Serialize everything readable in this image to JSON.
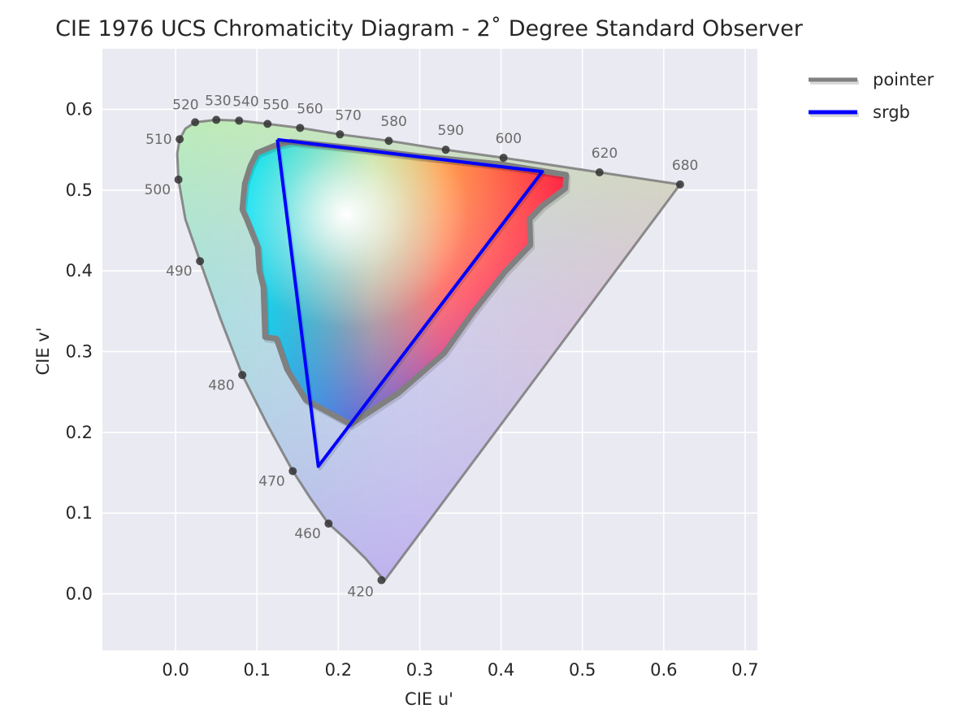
{
  "chart_data": {
    "type": "scatter",
    "title": "CIE 1976 UCS Chromaticity Diagram - 2˚ Degree Standard Observer",
    "xlabel": "CIE u'",
    "ylabel": "CIE v'",
    "xlim": [
      -0.09,
      0.715
    ],
    "ylim": [
      -0.07,
      0.675
    ],
    "xticks": [
      0.0,
      0.1,
      0.2,
      0.3,
      0.4,
      0.5,
      0.6,
      0.7
    ],
    "yticks": [
      0.0,
      0.1,
      0.2,
      0.3,
      0.4,
      0.5,
      0.6
    ],
    "xtick_labels": [
      "0.0",
      "0.1",
      "0.2",
      "0.3",
      "0.4",
      "0.5",
      "0.6",
      "0.7"
    ],
    "ytick_labels": [
      "0.0",
      "0.1",
      "0.2",
      "0.3",
      "0.4",
      "0.5",
      "0.6"
    ],
    "grid": true,
    "legend_position": "outside-top-right",
    "spectral_locus": [
      {
        "u": 0.2568,
        "v": 0.0165
      },
      {
        "u": 0.2333,
        "v": 0.044
      },
      {
        "u": 0.21,
        "v": 0.067
      },
      {
        "u": 0.188,
        "v": 0.087
      },
      {
        "u": 0.166,
        "v": 0.118
      },
      {
        "u": 0.144,
        "v": 0.152
      },
      {
        "u": 0.113,
        "v": 0.209
      },
      {
        "u": 0.082,
        "v": 0.271
      },
      {
        "u": 0.055,
        "v": 0.341
      },
      {
        "u": 0.03,
        "v": 0.412
      },
      {
        "u": 0.012,
        "v": 0.464
      },
      {
        "u": 0.0035,
        "v": 0.513
      },
      {
        "u": 0.002,
        "v": 0.545
      },
      {
        "u": 0.005,
        "v": 0.563
      },
      {
        "u": 0.012,
        "v": 0.576
      },
      {
        "u": 0.024,
        "v": 0.584
      },
      {
        "u": 0.05,
        "v": 0.587
      },
      {
        "u": 0.078,
        "v": 0.586
      },
      {
        "u": 0.113,
        "v": 0.582
      },
      {
        "u": 0.153,
        "v": 0.577
      },
      {
        "u": 0.202,
        "v": 0.569
      },
      {
        "u": 0.262,
        "v": 0.561
      },
      {
        "u": 0.332,
        "v": 0.55
      },
      {
        "u": 0.403,
        "v": 0.54
      },
      {
        "u": 0.521,
        "v": 0.522
      },
      {
        "u": 0.62,
        "v": 0.507
      }
    ],
    "wavelength_markers": [
      {
        "nm": "420",
        "u": 0.253,
        "v": 0.017
      },
      {
        "nm": "460",
        "u": 0.188,
        "v": 0.087
      },
      {
        "nm": "470",
        "u": 0.144,
        "v": 0.152
      },
      {
        "nm": "480",
        "u": 0.082,
        "v": 0.271
      },
      {
        "nm": "490",
        "u": 0.03,
        "v": 0.412
      },
      {
        "nm": "500",
        "u": 0.0035,
        "v": 0.513
      },
      {
        "nm": "510",
        "u": 0.005,
        "v": 0.563
      },
      {
        "nm": "520",
        "u": 0.024,
        "v": 0.584
      },
      {
        "nm": "530",
        "u": 0.05,
        "v": 0.587
      },
      {
        "nm": "540",
        "u": 0.078,
        "v": 0.586
      },
      {
        "nm": "550",
        "u": 0.113,
        "v": 0.582
      },
      {
        "nm": "560",
        "u": 0.153,
        "v": 0.577
      },
      {
        "nm": "570",
        "u": 0.202,
        "v": 0.569
      },
      {
        "nm": "580",
        "u": 0.262,
        "v": 0.561
      },
      {
        "nm": "590",
        "u": 0.332,
        "v": 0.55
      },
      {
        "nm": "600",
        "u": 0.403,
        "v": 0.54
      },
      {
        "nm": "620",
        "u": 0.521,
        "v": 0.522
      },
      {
        "nm": "680",
        "u": 0.62,
        "v": 0.507
      }
    ],
    "series": [
      {
        "name": "pointer",
        "color": "#808080",
        "points": [
          {
            "u": 0.124,
            "v": 0.556
          },
          {
            "u": 0.142,
            "v": 0.56
          },
          {
            "u": 0.22,
            "v": 0.552
          },
          {
            "u": 0.3,
            "v": 0.542
          },
          {
            "u": 0.4,
            "v": 0.532
          },
          {
            "u": 0.48,
            "v": 0.519
          },
          {
            "u": 0.479,
            "v": 0.502
          },
          {
            "u": 0.45,
            "v": 0.48
          },
          {
            "u": 0.435,
            "v": 0.464
          },
          {
            "u": 0.436,
            "v": 0.432
          },
          {
            "u": 0.405,
            "v": 0.399
          },
          {
            "u": 0.365,
            "v": 0.348
          },
          {
            "u": 0.33,
            "v": 0.298
          },
          {
            "u": 0.273,
            "v": 0.248
          },
          {
            "u": 0.215,
            "v": 0.21
          },
          {
            "u": 0.16,
            "v": 0.24
          },
          {
            "u": 0.137,
            "v": 0.278
          },
          {
            "u": 0.124,
            "v": 0.316
          },
          {
            "u": 0.11,
            "v": 0.318
          },
          {
            "u": 0.108,
            "v": 0.38
          },
          {
            "u": 0.103,
            "v": 0.4
          },
          {
            "u": 0.101,
            "v": 0.43
          },
          {
            "u": 0.087,
            "v": 0.465
          },
          {
            "u": 0.082,
            "v": 0.476
          },
          {
            "u": 0.085,
            "v": 0.508
          },
          {
            "u": 0.092,
            "v": 0.53
          },
          {
            "u": 0.1,
            "v": 0.546
          },
          {
            "u": 0.124,
            "v": 0.556
          }
        ]
      },
      {
        "name": "srgb",
        "color": "#0000ff",
        "points": [
          {
            "u": 0.125,
            "v": 0.5625
          },
          {
            "u": 0.4507,
            "v": 0.5229
          },
          {
            "u": 0.1754,
            "v": 0.1579
          },
          {
            "u": 0.125,
            "v": 0.5625
          }
        ]
      }
    ]
  }
}
